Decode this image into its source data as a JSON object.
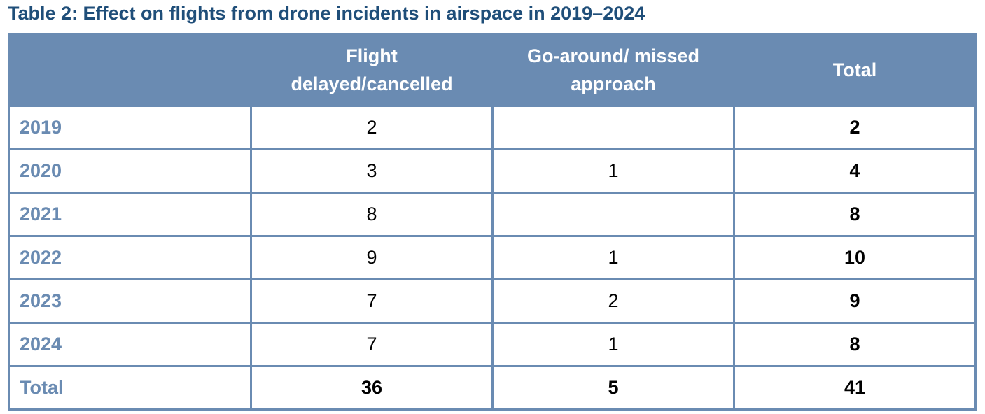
{
  "title": "Table 2: Effect on flights from drone incidents in airspace in 2019–2024",
  "table": {
    "header": [
      [
        "Flight",
        "delayed/cancelled"
      ],
      [
        "Go-around/ missed",
        "approach"
      ],
      [
        "Total"
      ]
    ],
    "rows": [
      [
        "2019",
        2,
        null,
        2
      ],
      [
        "2020",
        3,
        1,
        4
      ],
      [
        "2021",
        8,
        null,
        8
      ],
      [
        "2022",
        9,
        1,
        10
      ],
      [
        "2023",
        7,
        2,
        9
      ],
      [
        "2024",
        7,
        1,
        8
      ],
      [
        "Total",
        36,
        5,
        41
      ]
    ]
  }
}
